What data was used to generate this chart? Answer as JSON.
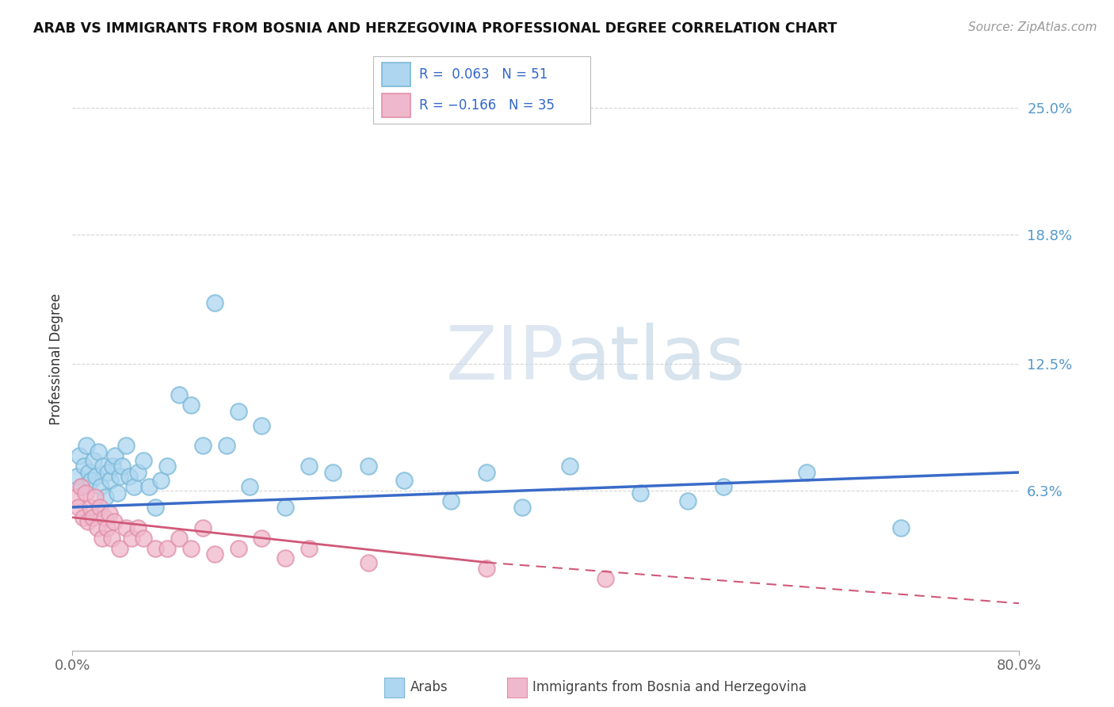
{
  "title": "ARAB VS IMMIGRANTS FROM BOSNIA AND HERZEGOVINA PROFESSIONAL DEGREE CORRELATION CHART",
  "source": "Source: ZipAtlas.com",
  "ylabel": "Professional Degree",
  "background_color": "#ffffff",
  "plot_bg_color": "#ffffff",
  "grid_color": "#cccccc",
  "xlim": [
    0.0,
    80.0
  ],
  "ylim": [
    -1.5,
    27.0
  ],
  "yticks": [
    6.3,
    12.5,
    18.8,
    25.0
  ],
  "ytick_labels": [
    "6.3%",
    "12.5%",
    "18.8%",
    "25.0%"
  ],
  "xticks": [
    0.0,
    80.0
  ],
  "xtick_labels": [
    "0.0%",
    "80.0%"
  ],
  "arab_color_edge": "#7ab8d8",
  "arab_color_fill": "#aed6f0",
  "bosnia_color_edge": "#e090a8",
  "bosnia_color_fill": "#f0b8cc",
  "line_blue": "#3a6bc8",
  "line_pink": "#d05878",
  "watermark_zip": "ZIP",
  "watermark_atlas": "atlas",
  "arab_scatter_x": [
    0.4,
    0.6,
    0.8,
    1.0,
    1.2,
    1.4,
    1.6,
    1.8,
    2.0,
    2.2,
    2.4,
    2.6,
    2.8,
    3.0,
    3.2,
    3.4,
    3.6,
    3.8,
    4.0,
    4.2,
    4.5,
    4.8,
    5.2,
    5.5,
    6.0,
    6.5,
    7.0,
    7.5,
    8.0,
    9.0,
    10.0,
    11.0,
    12.0,
    13.0,
    14.0,
    15.0,
    16.0,
    18.0,
    20.0,
    22.0,
    25.0,
    28.0,
    32.0,
    35.0,
    38.0,
    42.0,
    48.0,
    52.0,
    55.0,
    62.0,
    70.0
  ],
  "arab_scatter_y": [
    7.0,
    8.0,
    6.5,
    7.5,
    8.5,
    7.2,
    6.8,
    7.8,
    7.0,
    8.2,
    6.5,
    7.5,
    6.0,
    7.2,
    6.8,
    7.5,
    8.0,
    6.2,
    7.0,
    7.5,
    8.5,
    7.0,
    6.5,
    7.2,
    7.8,
    6.5,
    5.5,
    6.8,
    7.5,
    11.0,
    10.5,
    8.5,
    15.5,
    8.5,
    10.2,
    6.5,
    9.5,
    5.5,
    7.5,
    7.2,
    7.5,
    6.8,
    5.8,
    7.2,
    5.5,
    7.5,
    6.2,
    5.8,
    6.5,
    7.2,
    4.5
  ],
  "bosnia_scatter_x": [
    0.3,
    0.5,
    0.7,
    0.9,
    1.1,
    1.3,
    1.5,
    1.7,
    1.9,
    2.1,
    2.3,
    2.5,
    2.7,
    2.9,
    3.1,
    3.3,
    3.5,
    4.0,
    4.5,
    5.0,
    5.5,
    6.0,
    7.0,
    8.0,
    9.0,
    10.0,
    11.0,
    12.0,
    14.0,
    16.0,
    18.0,
    20.0,
    25.0,
    35.0,
    45.0
  ],
  "bosnia_scatter_y": [
    6.0,
    5.5,
    6.5,
    5.0,
    6.2,
    4.8,
    5.5,
    5.0,
    6.0,
    4.5,
    5.5,
    4.0,
    5.0,
    4.5,
    5.2,
    4.0,
    4.8,
    3.5,
    4.5,
    4.0,
    4.5,
    4.0,
    3.5,
    3.5,
    4.0,
    3.5,
    4.5,
    3.2,
    3.5,
    4.0,
    3.0,
    3.5,
    2.8,
    2.5,
    2.0
  ],
  "blue_line_x0": 0.0,
  "blue_line_y0": 5.5,
  "blue_line_x1": 80.0,
  "blue_line_y1": 7.2,
  "pink_line_solid_x0": 0.0,
  "pink_line_solid_y0": 5.0,
  "pink_line_solid_x1": 35.0,
  "pink_line_solid_y1": 2.8,
  "pink_line_dash_x0": 35.0,
  "pink_line_dash_y0": 2.8,
  "pink_line_dash_x1": 80.0,
  "pink_line_dash_y1": 0.8
}
